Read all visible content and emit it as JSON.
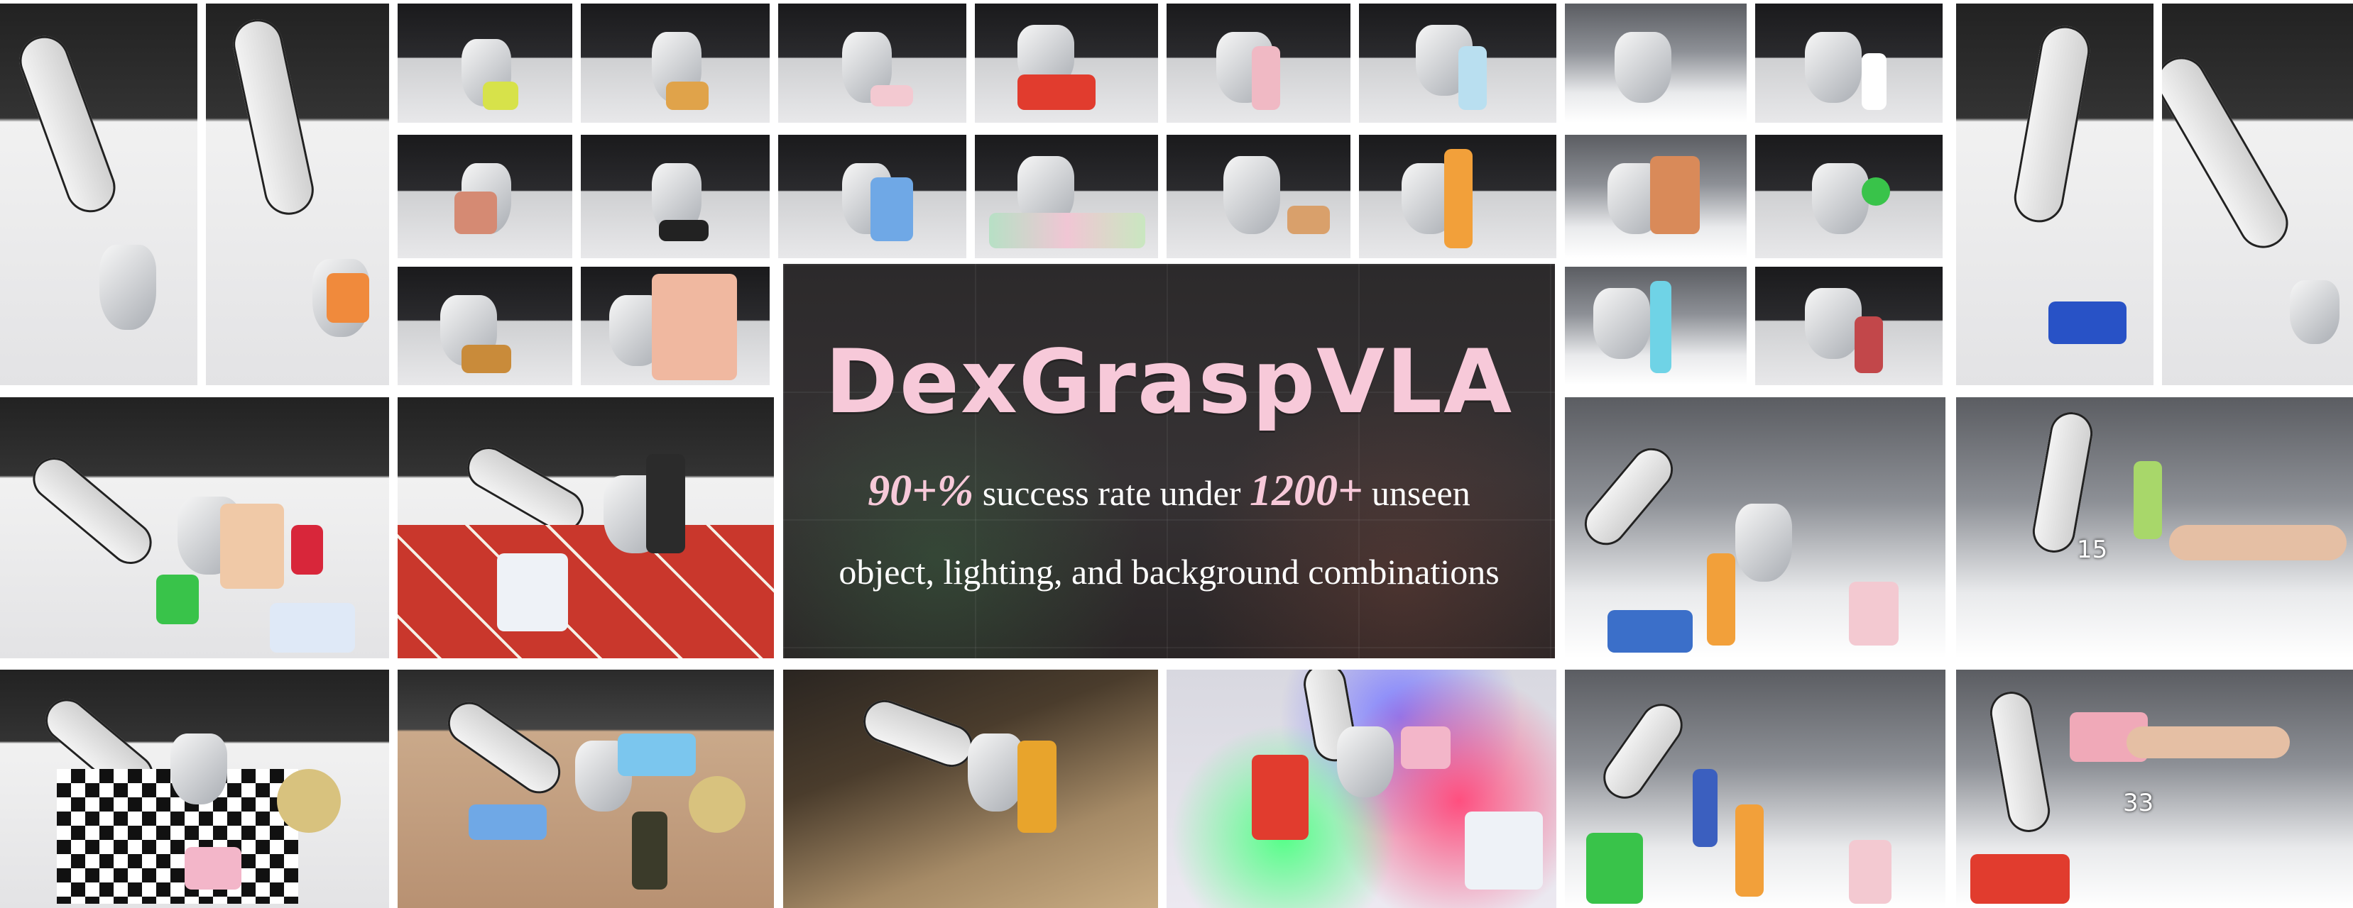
{
  "banner": {
    "title": "DexGraspVLA",
    "stat_success": "90+%",
    "text_success": " success rate under ",
    "stat_combos": "1200+",
    "text_unseen": " unseen",
    "line2": "object, lighting, and background combinations",
    "title_color": "#f7c9d9"
  },
  "tile_counters": {
    "right_middle": "15",
    "right_bottom": "33"
  }
}
